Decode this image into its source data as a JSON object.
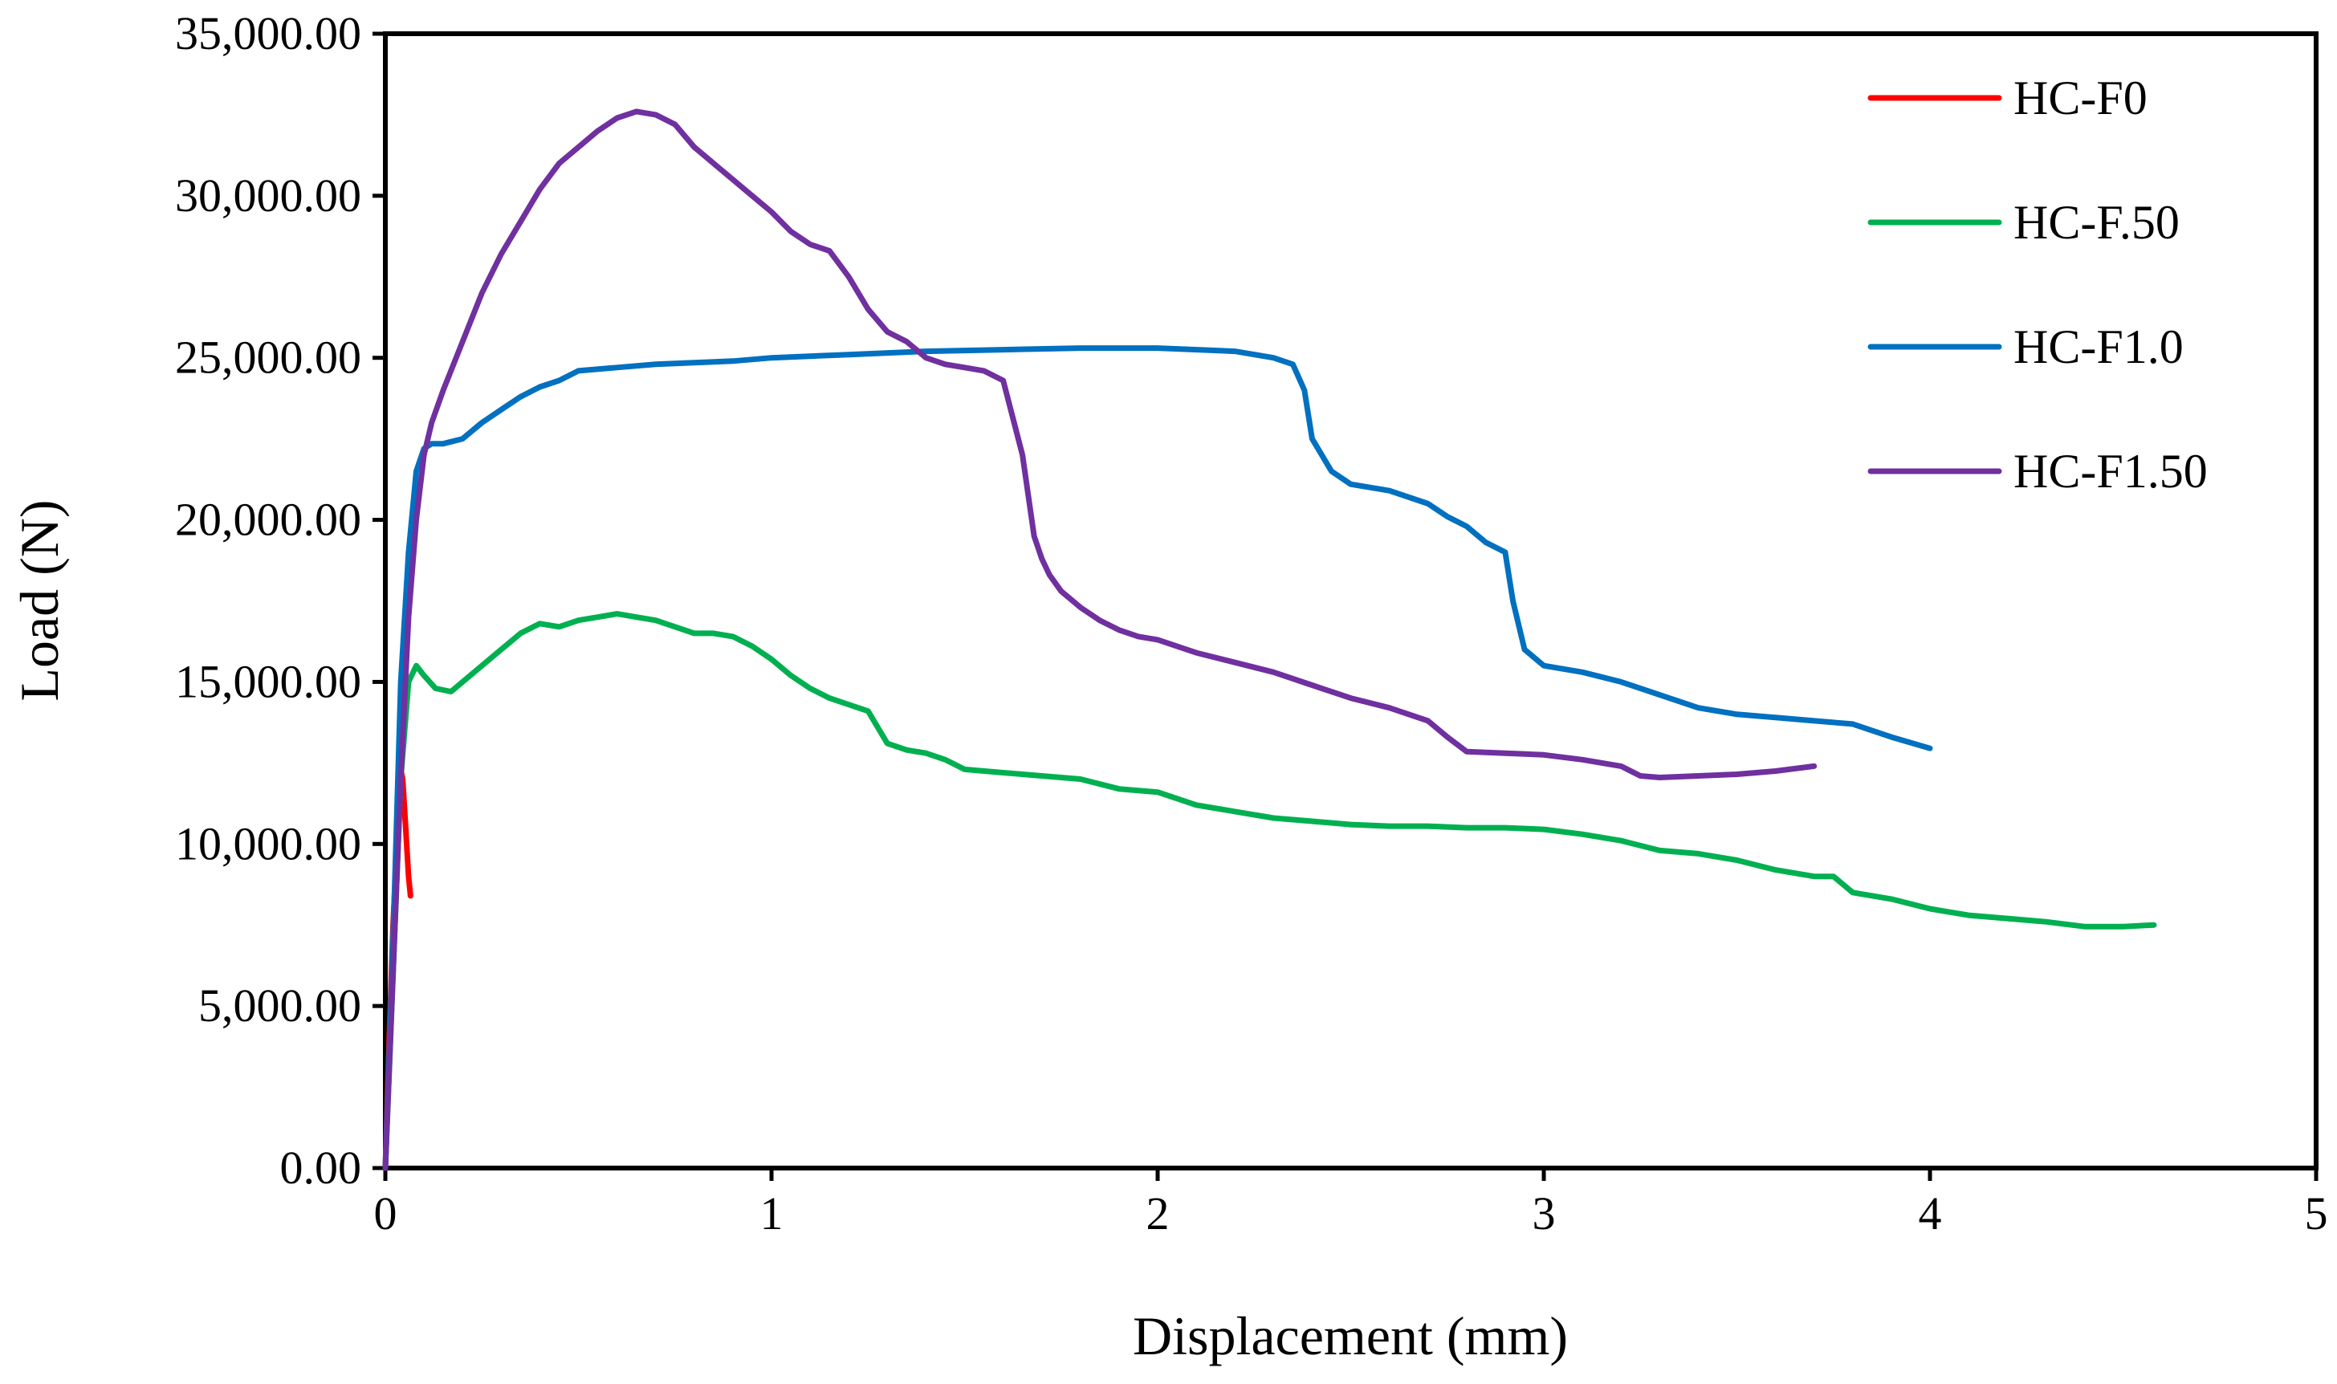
{
  "chart_data": {
    "type": "line",
    "title": "",
    "xlabel": "Displacement (mm)",
    "ylabel": "Load (N)",
    "xlim": [
      0,
      5
    ],
    "ylim": [
      0,
      35000
    ],
    "xticks": [
      0,
      1,
      2,
      3,
      4,
      5
    ],
    "xtick_labels": [
      "0",
      "1",
      "2",
      "3",
      "4",
      "5"
    ],
    "yticks": [
      0,
      5000,
      10000,
      15000,
      20000,
      25000,
      30000,
      35000
    ],
    "ytick_labels": [
      "0.00",
      "5,000.00",
      "10,000.00",
      "15,000.00",
      "20,000.00",
      "25,000.00",
      "30,000.00",
      "35,000.00"
    ],
    "grid": false,
    "legend_position": "top-right",
    "series": [
      {
        "name": "HC-F0",
        "color": "#FF0000",
        "x": [
          0,
          0.01,
          0.02,
          0.03,
          0.035,
          0.04,
          0.045,
          0.05,
          0.055,
          0.06,
          0.065
        ],
        "y": [
          0,
          4000,
          7500,
          10000,
          11500,
          12300,
          12000,
          11000,
          10000,
          9000,
          8400
        ]
      },
      {
        "name": "HC-F.50",
        "color": "#00B050",
        "x": [
          0,
          0.02,
          0.04,
          0.06,
          0.08,
          0.1,
          0.13,
          0.17,
          0.2,
          0.25,
          0.3,
          0.35,
          0.4,
          0.45,
          0.5,
          0.55,
          0.6,
          0.65,
          0.7,
          0.75,
          0.8,
          0.85,
          0.9,
          0.95,
          1.0,
          1.05,
          1.1,
          1.15,
          1.2,
          1.25,
          1.28,
          1.3,
          1.35,
          1.4,
          1.45,
          1.5,
          1.6,
          1.7,
          1.8,
          1.9,
          2.0,
          2.1,
          2.2,
          2.3,
          2.4,
          2.5,
          2.6,
          2.7,
          2.8,
          2.9,
          3.0,
          3.1,
          3.2,
          3.3,
          3.4,
          3.5,
          3.6,
          3.7,
          3.75,
          3.8,
          3.9,
          4.0,
          4.1,
          4.2,
          4.3,
          4.4,
          4.5,
          4.58
        ],
        "y": [
          0,
          6000,
          12000,
          15000,
          15500,
          15200,
          14800,
          14700,
          15000,
          15500,
          16000,
          16500,
          16800,
          16700,
          16900,
          17000,
          17100,
          17000,
          16900,
          16700,
          16500,
          16500,
          16400,
          16100,
          15700,
          15200,
          14800,
          14500,
          14300,
          14100,
          13500,
          13100,
          12900,
          12800,
          12600,
          12300,
          12200,
          12100,
          12000,
          11700,
          11600,
          11200,
          11000,
          10800,
          10700,
          10600,
          10550,
          10550,
          10500,
          10500,
          10450,
          10300,
          10100,
          9800,
          9700,
          9500,
          9200,
          9000,
          9000,
          8500,
          8300,
          8000,
          7800,
          7700,
          7600,
          7450,
          7450,
          7500
        ]
      },
      {
        "name": "HC-F1.0",
        "color": "#0070C0",
        "x": [
          0,
          0.02,
          0.04,
          0.06,
          0.08,
          0.1,
          0.12,
          0.15,
          0.2,
          0.25,
          0.3,
          0.35,
          0.4,
          0.45,
          0.5,
          0.6,
          0.7,
          0.8,
          0.9,
          1.0,
          1.2,
          1.4,
          1.6,
          1.8,
          2.0,
          2.2,
          2.3,
          2.35,
          2.38,
          2.4,
          2.45,
          2.5,
          2.6,
          2.7,
          2.75,
          2.8,
          2.85,
          2.9,
          2.92,
          2.95,
          3.0,
          3.1,
          3.2,
          3.3,
          3.4,
          3.5,
          3.6,
          3.7,
          3.8,
          3.9,
          4.0
        ],
        "y": [
          0,
          7000,
          15000,
          19000,
          21500,
          22200,
          22350,
          22350,
          22500,
          23000,
          23400,
          23800,
          24100,
          24300,
          24600,
          24700,
          24800,
          24850,
          24900,
          25000,
          25100,
          25200,
          25250,
          25300,
          25300,
          25200,
          25000,
          24800,
          24000,
          22500,
          21500,
          21100,
          20900,
          20500,
          20100,
          19800,
          19300,
          19000,
          17500,
          16000,
          15500,
          15300,
          15000,
          14600,
          14200,
          14000,
          13900,
          13800,
          13700,
          13300,
          12950
        ]
      },
      {
        "name": "HC-F1.50",
        "color": "#7030A0",
        "x": [
          0,
          0.02,
          0.04,
          0.06,
          0.08,
          0.1,
          0.12,
          0.15,
          0.2,
          0.25,
          0.3,
          0.35,
          0.4,
          0.45,
          0.5,
          0.55,
          0.6,
          0.65,
          0.7,
          0.75,
          0.8,
          0.85,
          0.9,
          0.95,
          1.0,
          1.05,
          1.1,
          1.15,
          1.2,
          1.25,
          1.3,
          1.35,
          1.4,
          1.45,
          1.5,
          1.55,
          1.6,
          1.65,
          1.68,
          1.7,
          1.72,
          1.75,
          1.8,
          1.85,
          1.9,
          1.95,
          2.0,
          2.1,
          2.2,
          2.3,
          2.4,
          2.5,
          2.6,
          2.7,
          2.75,
          2.8,
          2.9,
          3.0,
          3.1,
          3.2,
          3.25,
          3.3,
          3.4,
          3.5,
          3.6,
          3.7
        ],
        "y": [
          0,
          6000,
          12000,
          17000,
          20000,
          22000,
          23000,
          24000,
          25500,
          27000,
          28200,
          29200,
          30200,
          31000,
          31500,
          32000,
          32400,
          32600,
          32500,
          32200,
          31500,
          31000,
          30500,
          30000,
          29500,
          28900,
          28500,
          28300,
          27500,
          26500,
          25800,
          25500,
          25000,
          24800,
          24700,
          24600,
          24300,
          22000,
          19500,
          18800,
          18300,
          17800,
          17300,
          16900,
          16600,
          16400,
          16300,
          15900,
          15600,
          15300,
          14900,
          14500,
          14200,
          13800,
          13300,
          12850,
          12800,
          12750,
          12600,
          12400,
          12100,
          12050,
          12100,
          12150,
          12250,
          12400
        ]
      }
    ]
  }
}
